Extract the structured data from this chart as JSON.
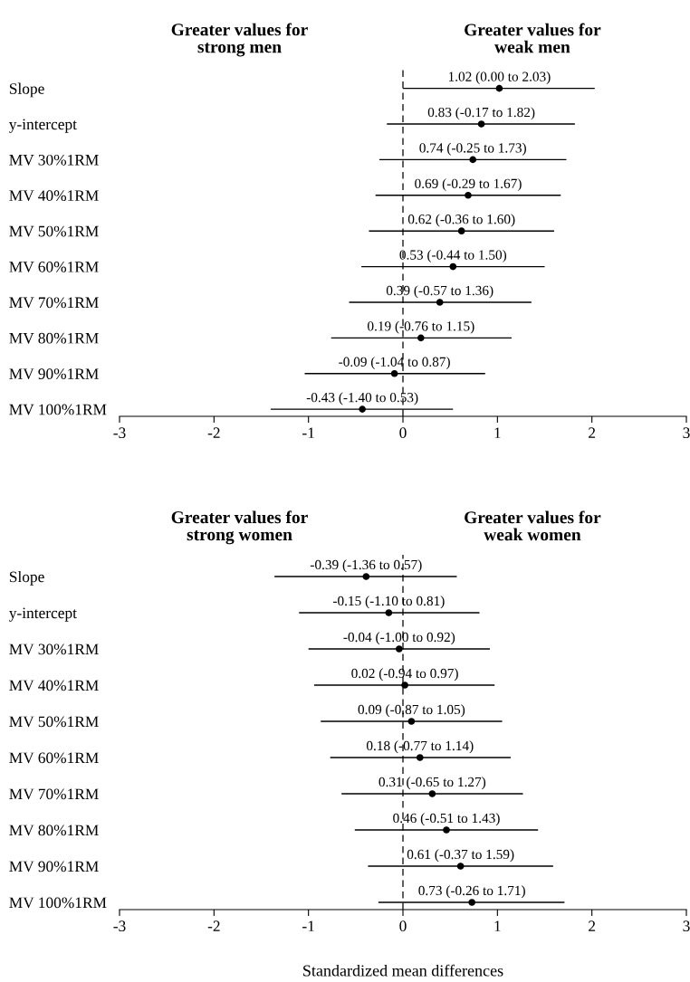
{
  "chart_data": [
    {
      "type": "scatter",
      "orientation": "horizontal",
      "marker": "circle",
      "xlim": [
        -3,
        3
      ],
      "xticks": [
        -3,
        -2,
        -1,
        0,
        1,
        2,
        3
      ],
      "categories": [
        "Slope",
        "y-intercept",
        "MV 30%1RM",
        "MV 40%1RM",
        "MV 50%1RM",
        "MV 60%1RM",
        "MV 70%1RM",
        "MV 80%1RM",
        "MV 90%1RM",
        "MV 100%1RM"
      ],
      "annotations": [
        "Greater values for\nstrong men",
        "Greater values for\nweak men"
      ],
      "ref_lines": [
        {
          "axis": "x",
          "value": 0,
          "line_style": "dashed",
          "color": "#000000"
        }
      ],
      "series": [
        {
          "color": "#000000",
          "values": [
            1.02,
            0.83,
            0.74,
            0.69,
            0.62,
            0.53,
            0.39,
            0.19,
            -0.09,
            -0.43
          ],
          "errors": [
            [
              0.0,
              2.03
            ],
            [
              -0.17,
              1.82
            ],
            [
              -0.25,
              1.73
            ],
            [
              -0.29,
              1.67
            ],
            [
              -0.36,
              1.6
            ],
            [
              -0.44,
              1.5
            ],
            [
              -0.57,
              1.36
            ],
            [
              -0.76,
              1.15
            ],
            [
              -1.04,
              0.87
            ],
            [
              -1.4,
              0.53
            ]
          ],
          "value_labels": [
            "1.02 (0.00 to 2.03)",
            "0.83 (-0.17 to 1.82)",
            "0.74 (-0.25 to 1.73)",
            "0.69 (-0.29 to 1.67)",
            "0.62 (-0.36 to 1.60)",
            "0.53 (-0.44 to 1.50)",
            "0.39 (-0.57 to 1.36)",
            "0.19 (-0.76 to 1.15)",
            "-0.09 (-1.04 to 0.87)",
            "-0.43 (-1.40 to 0.53)"
          ]
        }
      ]
    },
    {
      "type": "scatter",
      "orientation": "horizontal",
      "marker": "circle",
      "xlim": [
        -3,
        3
      ],
      "xticks": [
        -3,
        -2,
        -1,
        0,
        1,
        2,
        3
      ],
      "xlabel": "Standardized mean differences",
      "categories": [
        "Slope",
        "y-intercept",
        "MV 30%1RM",
        "MV 40%1RM",
        "MV 50%1RM",
        "MV 60%1RM",
        "MV 70%1RM",
        "MV 80%1RM",
        "MV 90%1RM",
        "MV 100%1RM"
      ],
      "annotations": [
        "Greater values for\nstrong women",
        "Greater values for\nweak women"
      ],
      "ref_lines": [
        {
          "axis": "x",
          "value": 0,
          "line_style": "dashed",
          "color": "#000000"
        }
      ],
      "series": [
        {
          "color": "#000000",
          "values": [
            -0.39,
            -0.15,
            -0.04,
            0.02,
            0.09,
            0.18,
            0.31,
            0.46,
            0.61,
            0.73
          ],
          "errors": [
            [
              -1.36,
              0.57
            ],
            [
              -1.1,
              0.81
            ],
            [
              -1.0,
              0.92
            ],
            [
              -0.94,
              0.97
            ],
            [
              -0.87,
              1.05
            ],
            [
              -0.77,
              1.14
            ],
            [
              -0.65,
              1.27
            ],
            [
              -0.51,
              1.43
            ],
            [
              -0.37,
              1.59
            ],
            [
              -0.26,
              1.71
            ]
          ],
          "value_labels": [
            "-0.39 (-1.36 to 0.57)",
            "-0.15 (-1.10 to 0.81)",
            "-0.04 (-1.00 to 0.92)",
            "0.02 (-0.94 to 0.97)",
            "0.09 (-0.87 to 1.05)",
            "0.18 (-0.77 to 1.14)",
            "0.31 (-0.65 to 1.27)",
            "0.46 (-0.51 to 1.43)",
            "0.61 (-0.37 to 1.59)",
            "0.73 (-0.26 to 1.71)"
          ]
        }
      ]
    }
  ]
}
